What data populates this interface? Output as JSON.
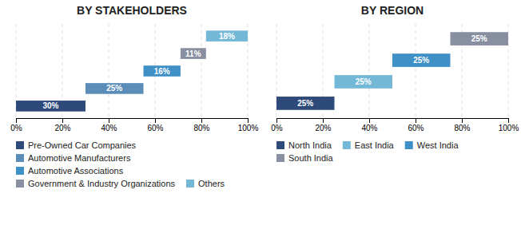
{
  "chart_data": [
    {
      "type": "bar",
      "orientation": "horizontal",
      "title": "BY STAKEHOLDERS",
      "categories": [
        "Pre-Owned Car Companies",
        "Automotive Manufacturers",
        "Automotive Associations",
        "Government & Industry Organizations",
        "Others"
      ],
      "starts": [
        0,
        30,
        55,
        71,
        82
      ],
      "values": [
        30,
        25,
        16,
        11,
        18
      ],
      "value_labels": [
        "30%",
        "25%",
        "16%",
        "11%",
        "18%"
      ],
      "colors": [
        "#2E4A7A",
        "#5B8DB8",
        "#4090C8",
        "#888FA0",
        "#74B8D8"
      ],
      "data_labels": true,
      "xlim": [
        0,
        100
      ],
      "xticks": [
        {
          "value": 0,
          "label": "0%"
        },
        {
          "value": 20,
          "label": "20%"
        },
        {
          "value": 40,
          "label": "40%"
        },
        {
          "value": 60,
          "label": "60%"
        },
        {
          "value": 80,
          "label": "80%"
        },
        {
          "value": 100,
          "label": "100%"
        }
      ],
      "grid": true,
      "tick_labels": "x",
      "legend": "bottom"
    },
    {
      "type": "bar",
      "orientation": "horizontal",
      "title": "BY REGION",
      "categories": [
        "North India",
        "East India",
        "West India",
        "South India"
      ],
      "starts": [
        0,
        25,
        50,
        75
      ],
      "values": [
        25,
        25,
        25,
        25
      ],
      "value_labels": [
        "25%",
        "25%",
        "25%",
        "25%"
      ],
      "colors": [
        "#2E4A7A",
        "#74B8D8",
        "#4090C8",
        "#888FA0"
      ],
      "data_labels": true,
      "xlim": [
        0,
        100
      ],
      "xticks": [
        {
          "value": 0,
          "label": "0%"
        },
        {
          "value": 20,
          "label": "20%"
        },
        {
          "value": 40,
          "label": "40%"
        },
        {
          "value": 60,
          "label": "60%"
        },
        {
          "value": 80,
          "label": "80%"
        },
        {
          "value": 100,
          "label": "100%"
        }
      ],
      "grid": true,
      "tick_labels": "x",
      "legend": "bottom"
    }
  ]
}
